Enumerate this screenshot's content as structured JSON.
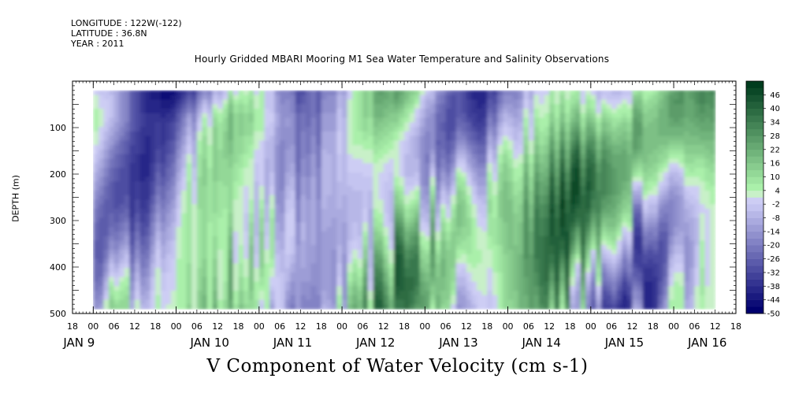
{
  "header": {
    "longitude": "LONGITUDE : 122W(-122)",
    "latitude": "LATITUDE : 36.8N",
    "year": "YEAR : 2011"
  },
  "chart_data": {
    "type": "heatmap",
    "title": "Hourly Gridded MBARI Mooring M1 Sea Water Temperature and Salinity Observations",
    "ylabel": "DEPTH (m)",
    "xlabel": "V Component of Water Velocity (cm s-1)",
    "variable": "V Component of Water Velocity",
    "units": "cm s-1",
    "y_axis": {
      "inverted": true,
      "range": [
        0,
        500
      ],
      "tick_labels": [
        "100",
        "200",
        "300",
        "400",
        "500"
      ],
      "tick_values": [
        100,
        200,
        300,
        400,
        500
      ]
    },
    "x_axis": {
      "hour_labels": [
        "18",
        "00",
        "06",
        "12",
        "18",
        "00",
        "06",
        "12",
        "18",
        "00",
        "06",
        "12",
        "18",
        "00",
        "06",
        "12",
        "18",
        "00",
        "06",
        "12",
        "18",
        "00",
        "06",
        "12",
        "18",
        "00",
        "06",
        "12",
        "18",
        "00",
        "06",
        "12",
        "18"
      ],
      "day_labels": [
        "JAN 9",
        "JAN 10",
        "JAN 11",
        "JAN 12",
        "JAN 13",
        "JAN 14",
        "JAN 15",
        "JAN 16"
      ],
      "range": [
        "2011-01-08T18:00",
        "2011-01-16T18:00"
      ]
    },
    "colorbar": {
      "labels": [
        "46",
        "40",
        "34",
        "28",
        "22",
        "16",
        "10",
        "4",
        "-2",
        "-8",
        "-14",
        "-20",
        "-26",
        "-32",
        "-38",
        "-44",
        "-50"
      ],
      "min": -50,
      "max": 52,
      "step": 3
    },
    "data_extent": {
      "depth": [
        20,
        490
      ],
      "time": [
        "2011-01-09T00:00",
        "2011-01-16T12:00"
      ]
    },
    "colors": {
      "negative_strong": "#000080",
      "neutral_neg": "#c8c8f0",
      "neutral_pos": "#c8f0c8",
      "positive_strong": "#003a1a"
    }
  }
}
